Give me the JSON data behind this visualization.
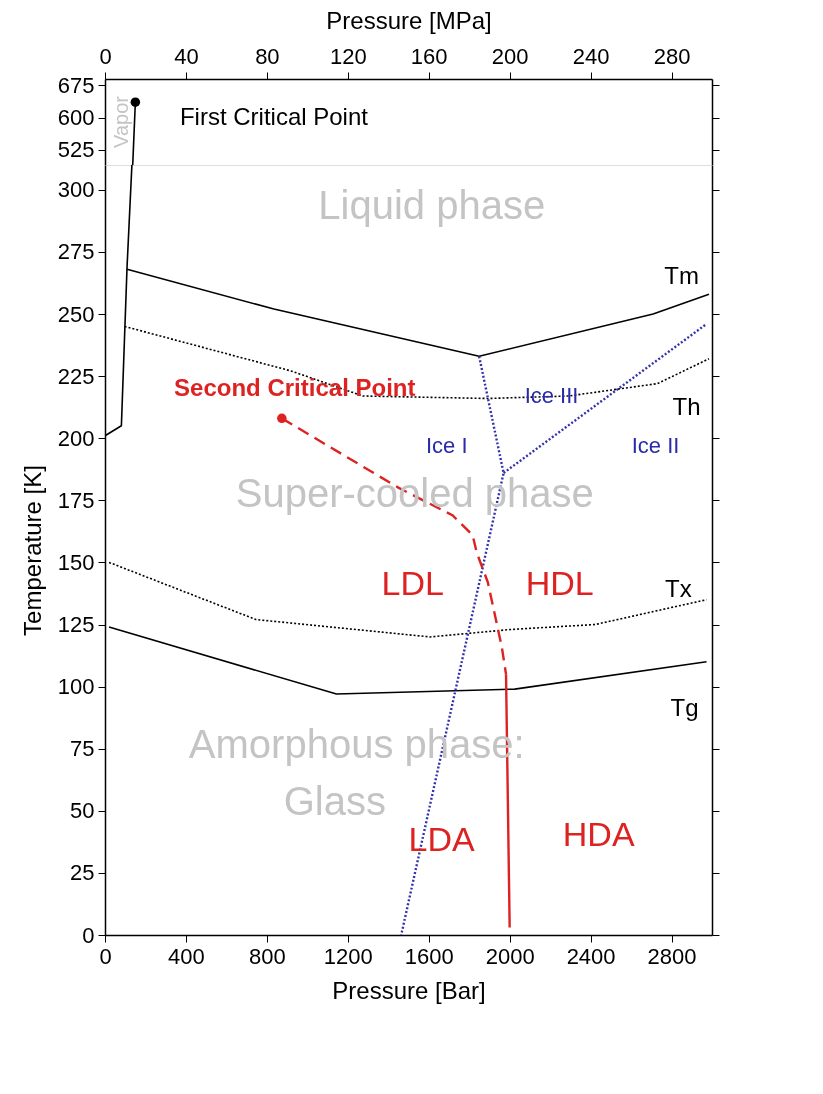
{
  "chart_data": [
    {
      "type": "line",
      "xlim": [
        0,
        3000
      ],
      "x2lim": [
        0,
        300
      ],
      "x2ticks": [
        0,
        40,
        80,
        120,
        160,
        200,
        240,
        280
      ],
      "x2label": "Pressure [MPa]",
      "ylim": [
        490,
        690
      ],
      "yticks": [
        525,
        600,
        675
      ],
      "grid": false,
      "series": [
        {
          "color": "#000000",
          "line_style": "solid",
          "marker": "none",
          "x": [
            137,
            150
          ],
          "values": [
            490,
            636
          ]
        },
        {
          "type": "scatter",
          "color": "#000000",
          "marker": "circle",
          "x": [
            150
          ],
          "values": [
            636
          ]
        }
      ],
      "annotations": [
        "First Critical Point",
        "Vapor"
      ]
    },
    {
      "type": "line",
      "xlim": [
        0,
        3000
      ],
      "xticks": [
        0,
        400,
        800,
        1200,
        1600,
        2000,
        2400,
        2800
      ],
      "xlabel": "Pressure [Bar]",
      "ylim": [
        0,
        310
      ],
      "yticks": [
        0,
        25,
        50,
        75,
        100,
        125,
        150,
        175,
        200,
        225,
        250,
        275,
        300
      ],
      "ylabel": "Temperature [K]",
      "grid": false,
      "series": [
        {
          "color": "#000000",
          "line_style": "solid",
          "marker": "none",
          "x": [
            0,
            81,
            109,
            133
          ],
          "values": [
            201,
            205,
            269,
            310
          ]
        },
        {
          "color": "#000000",
          "line_style": "solid",
          "marker": "none",
          "x": [
            109,
            835,
            1849,
            2709,
            2985
          ],
          "values": [
            268,
            252,
            233,
            250,
            258
          ]
        },
        {
          "color": "#000000",
          "line_style": "dotted",
          "marker": "none",
          "x": [
            97,
            923,
            1274,
            1892,
            2291,
            2731,
            2985
          ],
          "values": [
            245,
            227,
            217,
            216,
            217,
            222,
            232
          ]
        },
        {
          "color": "#000000",
          "line_style": "dotted",
          "marker": "none",
          "x": [
            20,
            746,
            1607,
            2004,
            2423,
            2973
          ],
          "values": [
            150,
            127,
            120,
            123,
            125,
            135
          ]
        },
        {
          "color": "#000000",
          "line_style": "solid",
          "marker": "none",
          "x": [
            20,
            1144,
            2025,
            2973
          ],
          "values": [
            124,
            97,
            99,
            110
          ]
        },
        {
          "color": "#3333aa",
          "line_style": "dotted",
          "marker": "none",
          "x": [
            1849,
            1970,
            1464
          ],
          "values": [
            233,
            186,
            0
          ]
        },
        {
          "color": "#3333aa",
          "line_style": "dotted",
          "marker": "none",
          "x": [
            1970,
            2973
          ],
          "values": [
            186,
            246
          ]
        },
        {
          "color": "#dd2222",
          "line_style": "dashed",
          "marker": "none",
          "x": [
            874,
            1452,
            1717,
            1817,
            1837,
            1892,
            1961,
            1982
          ],
          "values": [
            208,
            180,
            169,
            161,
            154,
            142,
            116,
            105
          ]
        },
        {
          "color": "#dd2222",
          "line_style": "solid",
          "marker": "none",
          "x": [
            1982,
            2000
          ],
          "values": [
            105,
            3
          ]
        },
        {
          "type": "scatter",
          "color": "#dd2222",
          "marker": "circle",
          "x": [
            874
          ],
          "values": [
            208
          ]
        }
      ],
      "annotations": [
        "Liquid phase",
        "Tm",
        "Second Critical Point",
        "Ice III",
        "Th",
        "Ice I",
        "Ice II",
        "Super-cooled phase",
        "LDL",
        "HDL",
        "Tx",
        "Tg",
        "Amorphous phase:",
        "Glass",
        "LDA",
        "HDA"
      ]
    }
  ]
}
